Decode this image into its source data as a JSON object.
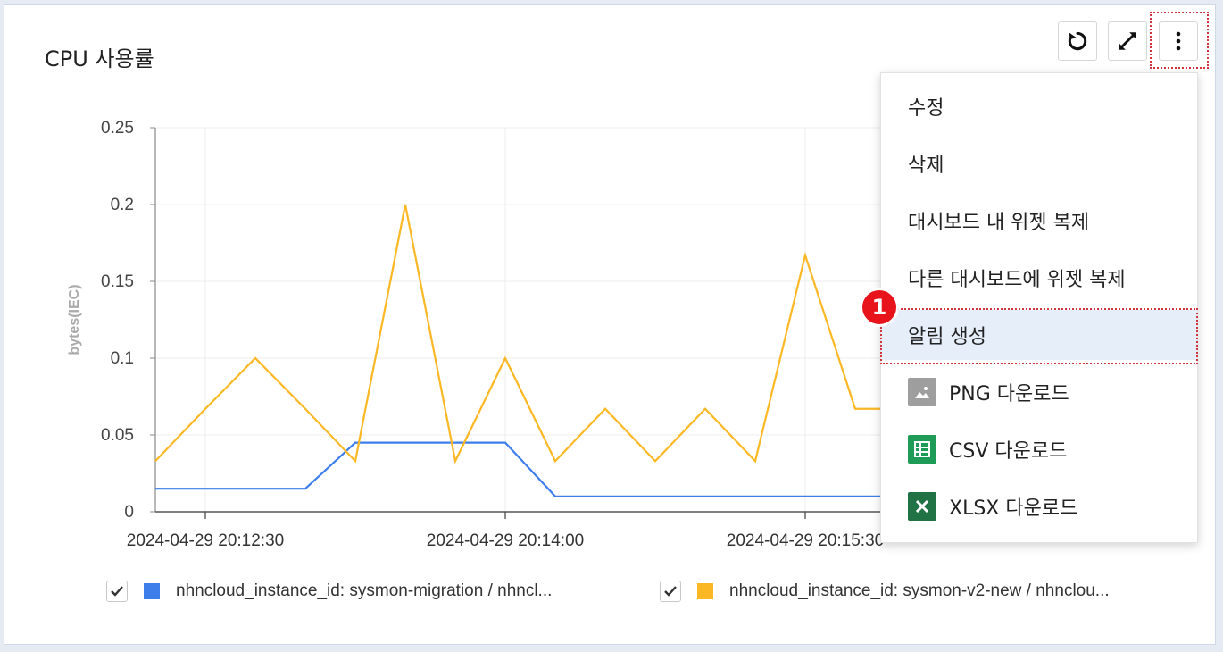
{
  "widget": {
    "title": "CPU 사용률"
  },
  "toolbar": {
    "refresh_icon": "refresh-icon",
    "expand_icon": "expand-icon",
    "more_icon": "more-vertical-icon"
  },
  "chart_data": {
    "type": "line",
    "title": "",
    "xlabel": "",
    "ylabel": "bytes(IEC)",
    "ylim": [
      0,
      0.25
    ],
    "y_ticks": [
      "0.25",
      "0.2",
      "0.15",
      "0.1",
      "0.05",
      "0"
    ],
    "x_ticks": [
      "2024-04-29 20:12:30",
      "2024-04-29 20:14:00",
      "2024-04-29 20:15:30"
    ],
    "x": [
      "20:12:15",
      "20:12:30",
      "20:12:45",
      "20:13:00",
      "20:13:15",
      "20:13:30",
      "20:13:45",
      "20:14:00",
      "20:14:15",
      "20:14:30",
      "20:14:45",
      "20:15:00",
      "20:15:15",
      "20:15:30",
      "20:15:45",
      "20:16:00"
    ],
    "series": [
      {
        "name": "nhncloud_instance_id: sysmon-migration / nhncl...",
        "color": "#3d7eea",
        "values": [
          0.015,
          0.015,
          0.015,
          0.015,
          0.045,
          0.045,
          0.045,
          0.045,
          0.01,
          0.01,
          0.01,
          0.01,
          0.01,
          0.01,
          0.01,
          0.01
        ]
      },
      {
        "name": "nhncloud_instance_id: sysmon-v2-new / nhnclou...",
        "color": "#fbb824",
        "values": [
          0.033,
          0.067,
          0.1,
          0.067,
          0.033,
          0.2,
          0.033,
          0.1,
          0.033,
          0.067,
          0.033,
          0.067,
          0.033,
          0.167,
          0.067,
          0.067
        ]
      }
    ],
    "grid": true
  },
  "menu": {
    "items": [
      {
        "label": "수정"
      },
      {
        "label": "삭제"
      },
      {
        "label": "대시보드 내 위젯 복제"
      },
      {
        "label": "다른 대시보드에 위젯 복제"
      },
      {
        "label": "알림 생성"
      },
      {
        "label": "PNG 다운로드",
        "icon": "image-icon"
      },
      {
        "label": "CSV 다운로드",
        "icon": "csv-sheet-icon"
      },
      {
        "label": "XLSX 다운로드",
        "icon": "excel-icon"
      }
    ]
  },
  "annotation": {
    "badge": "1"
  },
  "colors": {
    "accent_red": "#e8141c",
    "highlight": "#e6eefa"
  }
}
